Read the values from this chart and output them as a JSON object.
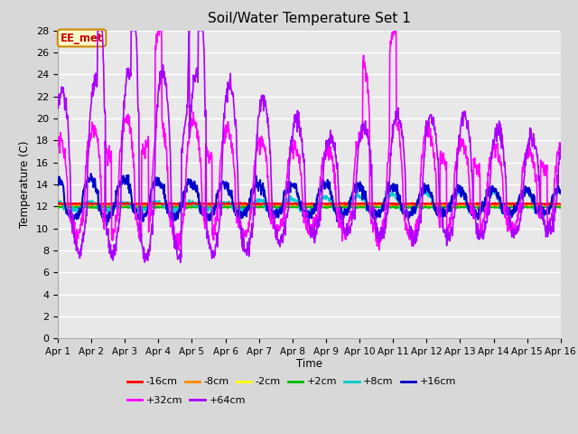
{
  "title": "Soil/Water Temperature Set 1",
  "ylabel": "Temperature (C)",
  "xlabel": "Time",
  "annotation": "EE_met",
  "plot_bg": "#e8e8e8",
  "fig_bg": "#d8d8d8",
  "ylim": [
    0,
    28
  ],
  "xlim": [
    0,
    15
  ],
  "yticks": [
    0,
    2,
    4,
    6,
    8,
    10,
    12,
    14,
    16,
    18,
    20,
    22,
    24,
    26,
    28
  ],
  "x_labels": [
    "Apr 1",
    "Apr 2",
    "Apr 3",
    "Apr 4",
    "Apr 5",
    "Apr 6",
    "Apr 7",
    "Apr 8",
    "Apr 9",
    "Apr 10",
    "Apr 11",
    "Apr 12",
    "Apr 13",
    "Apr 14",
    "Apr 15",
    "Apr 16"
  ],
  "series_meta": [
    {
      "label": "-16cm",
      "color": "#ff0000",
      "lw": 1.2,
      "zorder": 5
    },
    {
      "label": "-8cm",
      "color": "#ff8800",
      "lw": 1.2,
      "zorder": 4
    },
    {
      "label": "-2cm",
      "color": "#ffff00",
      "lw": 1.2,
      "zorder": 3
    },
    {
      "label": "+2cm",
      "color": "#00bb00",
      "lw": 1.2,
      "zorder": 3
    },
    {
      "label": "+8cm",
      "color": "#00cccc",
      "lw": 1.2,
      "zorder": 4
    },
    {
      "label": "+16cm",
      "color": "#0000cc",
      "lw": 1.5,
      "zorder": 5
    },
    {
      "label": "+32cm",
      "color": "#ff00ff",
      "lw": 1.2,
      "zorder": 6
    },
    {
      "label": "+64cm",
      "color": "#aa00ff",
      "lw": 1.2,
      "zorder": 7
    }
  ],
  "legend_ncol_row1": 6,
  "legend_ncol_row2": 2
}
